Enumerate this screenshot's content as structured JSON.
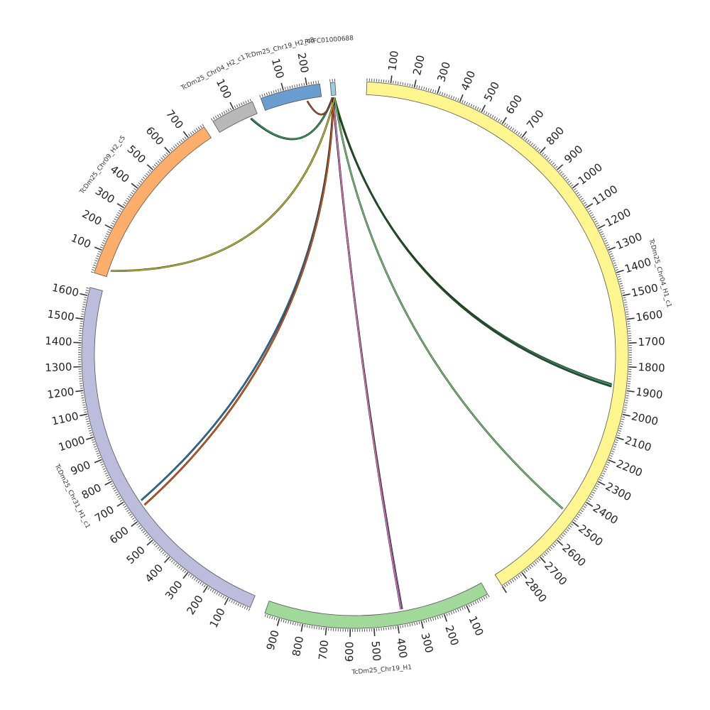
{
  "chart_data": {
    "type": "chord",
    "chromosomes": [
      {
        "name": "TcDm25_Chr04_H1_c1",
        "length": 2900,
        "color": "#fff68f",
        "label_ticks": [
          100,
          200,
          300,
          400,
          500,
          600,
          700,
          800,
          900,
          1000,
          1100,
          1200,
          1300,
          1400,
          1500,
          1600,
          1700,
          1800,
          1900,
          2000,
          2100,
          2200,
          2300,
          2400,
          2500,
          2600,
          2700,
          2800
        ]
      },
      {
        "name": "TcDm25_Chr19_H1",
        "length": 965,
        "color": "#a1d99b",
        "label_ticks": [
          100,
          200,
          300,
          400,
          500,
          600,
          700,
          800,
          900
        ]
      },
      {
        "name": "TcDm25_Chr31_H1_c1",
        "length": 1635,
        "color": "#bcbddc",
        "label_ticks": [
          100,
          200,
          300,
          400,
          500,
          600,
          700,
          800,
          900,
          1000,
          1100,
          1200,
          1300,
          1400,
          1500,
          1600
        ]
      },
      {
        "name": "TcDm25_Chr09_H2_c5",
        "length": 780,
        "color": "#fdae6b",
        "label_ticks": [
          100,
          200,
          300,
          400,
          500,
          600,
          700
        ]
      },
      {
        "name": "TcDm25_Chr04_H2_c1",
        "length": 185,
        "color": "#b8b8b8",
        "label_ticks": [
          100
        ]
      },
      {
        "name": "TcDm25_Chr19_H2_c3",
        "length": 255,
        "color": "#6a9ed0",
        "label_ticks": [
          100,
          200
        ]
      },
      {
        "name": "PRFC01000688",
        "length": 20,
        "color": "#9ecae1",
        "label_ticks": []
      }
    ],
    "links": [
      {
        "from": "PRFC01000688",
        "from_pos": 10,
        "to": "TcDm25_Chr04_H1_c1",
        "to_pos": 1880,
        "color": "#2ca02c"
      },
      {
        "from": "PRFC01000688",
        "from_pos": 11,
        "to": "TcDm25_Chr04_H1_c1",
        "to_pos": 1885,
        "color": "#6baed6"
      },
      {
        "from": "PRFC01000688",
        "from_pos": 12,
        "to": "TcDm25_Chr04_H1_c1",
        "to_pos": 1890,
        "color": "#1b5e20"
      },
      {
        "from": "PRFC01000688",
        "from_pos": 13,
        "to": "TcDm25_Chr04_H1_c1",
        "to_pos": 2480,
        "color": "#74c476"
      },
      {
        "from": "PRFC01000688",
        "from_pos": 6,
        "to": "TcDm25_Chr19_H1",
        "to_pos": 370,
        "color": "#756bb1"
      },
      {
        "from": "PRFC01000688",
        "from_pos": 7,
        "to": "TcDm25_Chr19_H1",
        "to_pos": 375,
        "color": "#e377c2"
      },
      {
        "from": "PRFC01000688",
        "from_pos": 8,
        "to": "TcDm25_Chr31_H1_c1",
        "to_pos": 665,
        "color": "#1f77b4"
      },
      {
        "from": "PRFC01000688",
        "from_pos": 9,
        "to": "TcDm25_Chr31_H1_c1",
        "to_pos": 640,
        "color": "#e6550d"
      },
      {
        "from": "PRFC01000688",
        "from_pos": 14,
        "to": "TcDm25_Chr09_H2_c5",
        "to_pos": 30,
        "color": "#bcbd22"
      },
      {
        "from": "PRFC01000688",
        "from_pos": 4,
        "to": "TcDm25_Chr04_H2_c1",
        "to_pos": 150,
        "color": "#3f3f9f"
      },
      {
        "from": "PRFC01000688",
        "from_pos": 5,
        "to": "TcDm25_Chr04_H2_c1",
        "to_pos": 152,
        "color": "#31a354"
      },
      {
        "from": "PRFC01000688",
        "from_pos": 3,
        "to": "TcDm25_Chr19_H2_c3",
        "to_pos": 190,
        "color": "#a0522d"
      }
    ]
  }
}
